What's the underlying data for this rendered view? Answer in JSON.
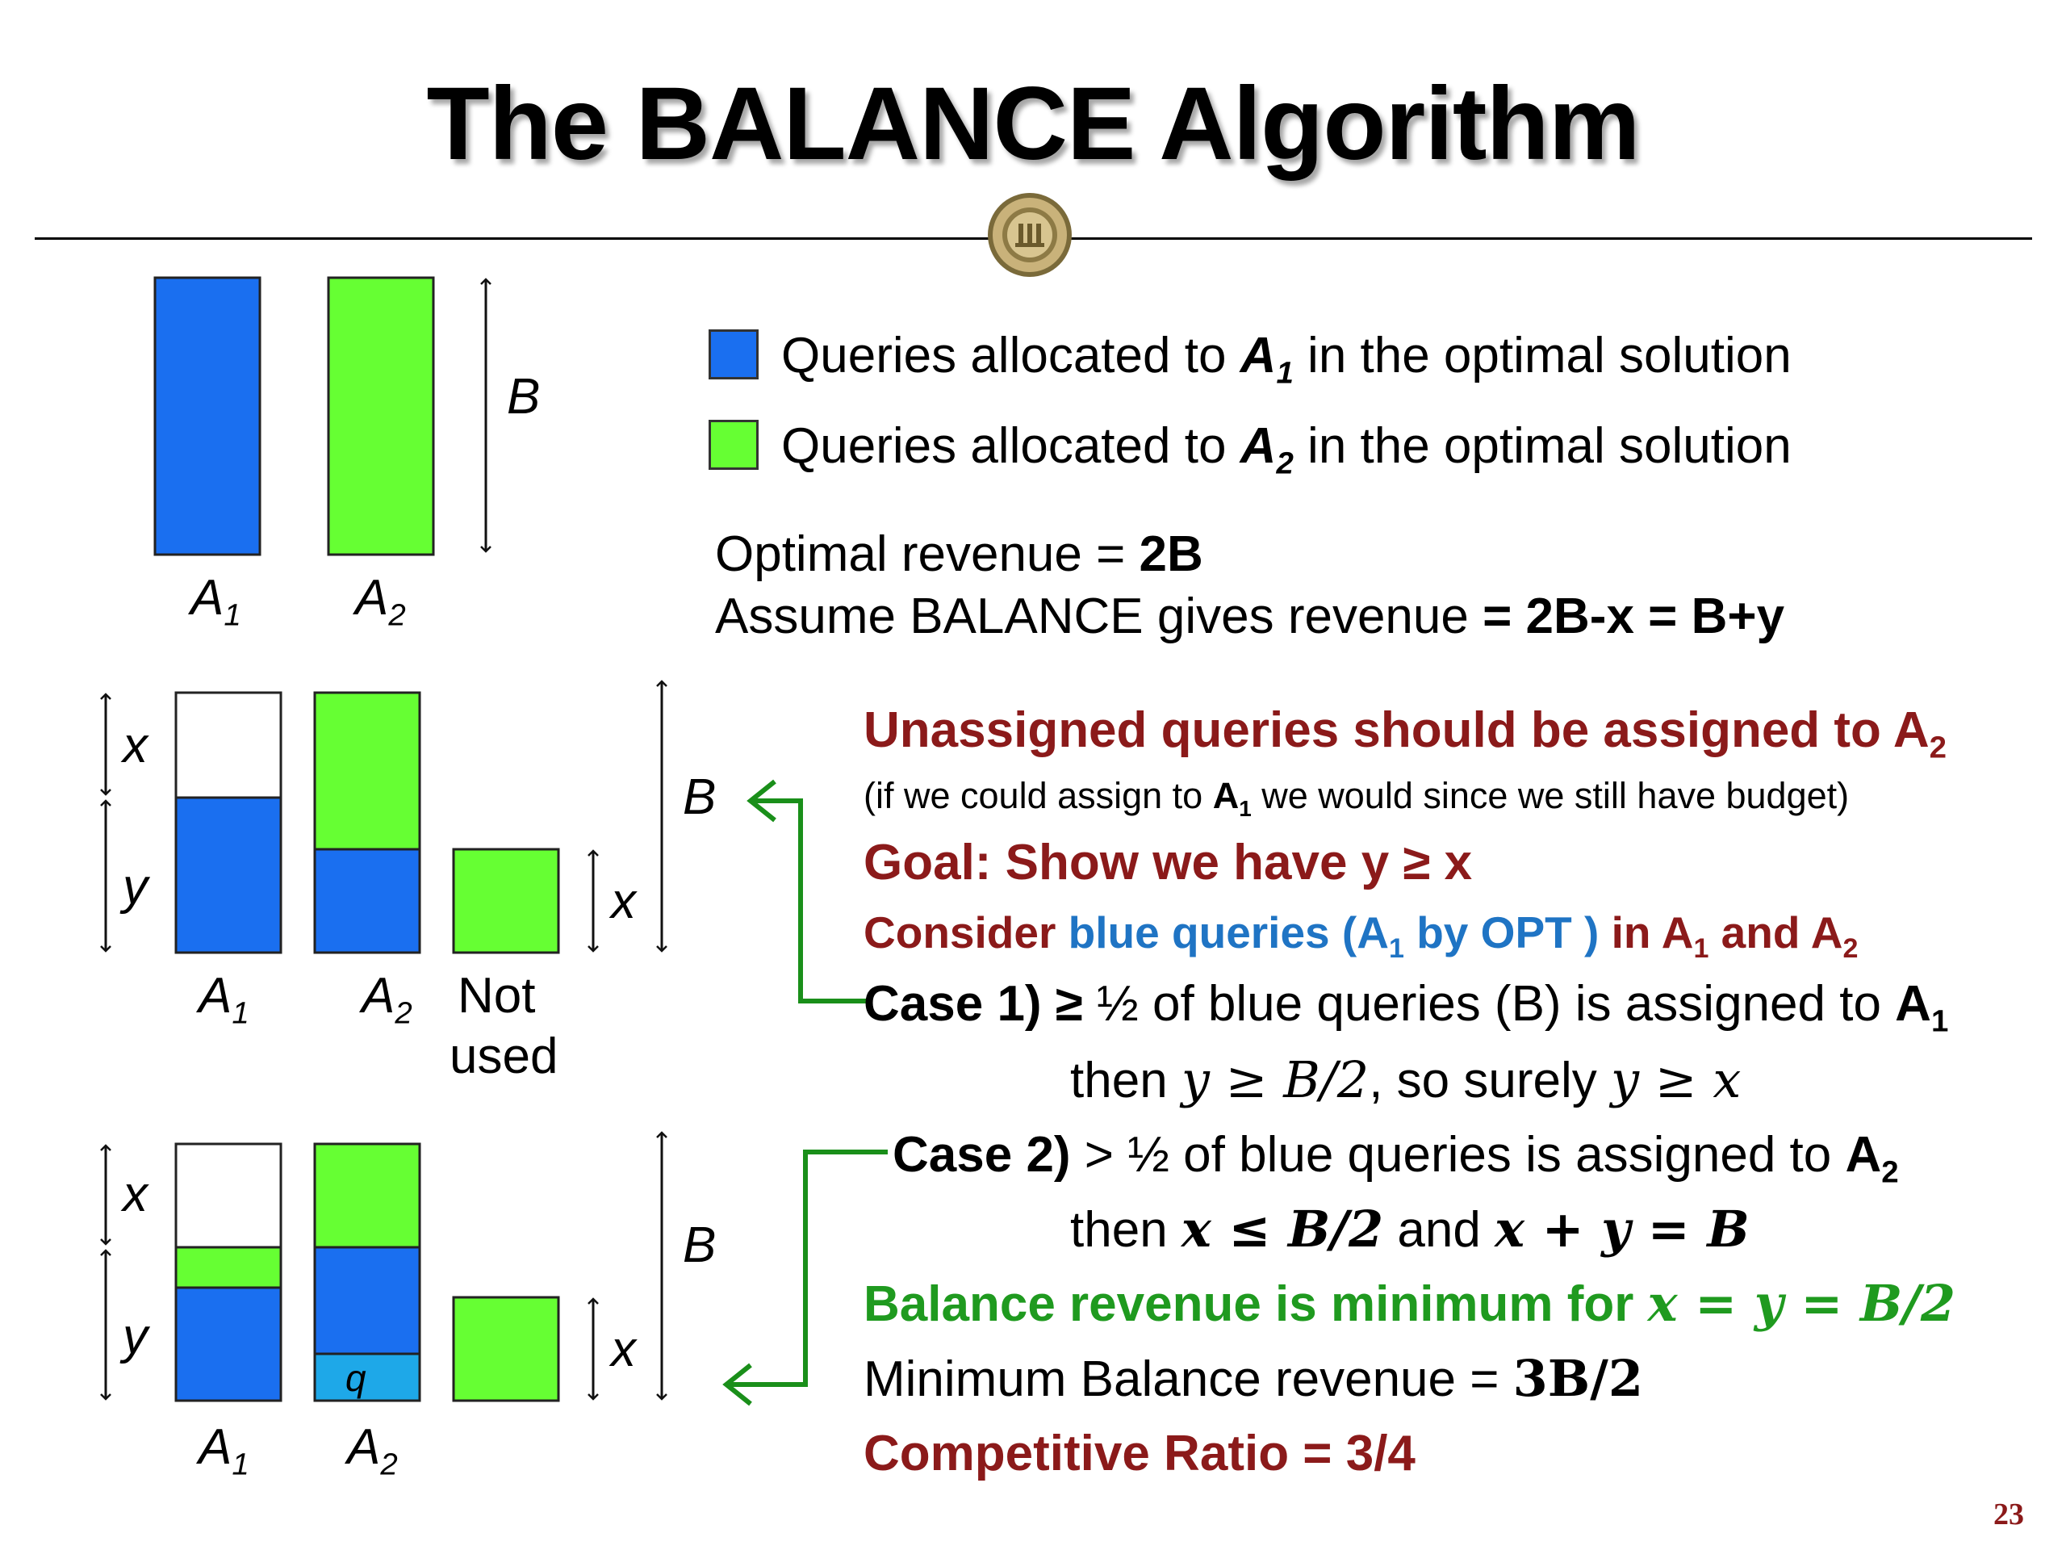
{
  "slide": {
    "title": "The BALANCE Algorithm",
    "page_number": "23"
  },
  "colors": {
    "blue": "#1a6ff0",
    "green": "#66ff33",
    "light_blue": "#1ea8e8",
    "dark_red": "#8b1a1a",
    "text_blue": "#1f74c4",
    "text_green": "#1f9a1f"
  },
  "diagram_labels": {
    "B": "B",
    "x": "x",
    "y": "y",
    "q": "q",
    "A": "A",
    "sub1": "1",
    "sub2": "2",
    "not": "Not",
    "used": "used"
  },
  "legend": {
    "prefix": "Queries allocated to ",
    "suffix": " in the optimal solution",
    "a": "A",
    "sub1": "1",
    "sub2": "2"
  },
  "revenue": {
    "optimal_prefix": "Optimal revenue = ",
    "optimal_value": "2B",
    "assume_prefix": "Assume BALANCE gives revenue ",
    "assume_value": "= 2B-x = B+y"
  },
  "reasoning": {
    "unassigned": "Unassigned queries should be assigned to A",
    "unassigned_sub": "2",
    "note_prefix": "(if we could assign to ",
    "note_a": "A",
    "note_sub": "1",
    "note_suffix": " we would since we still have budget)",
    "goal": "Goal: Show we have y ≥ x",
    "consider_1": "Consider ",
    "consider_blue": "blue queries (A",
    "consider_blue_sub": "1",
    "consider_blue_2": " by OPT )",
    "consider_2": " in A",
    "consider_2_sub": "1",
    "consider_3": " and A",
    "consider_3_sub": "2",
    "case1_label": "Case 1) ≥",
    "case1_text": " ½ of blue queries (B) is assigned to ",
    "case1_a": "A",
    "case1_sub": "1",
    "case1_then": "then ",
    "case1_math1": "y ≥ B/2",
    "case1_mid": ", so surely ",
    "case1_math2": "y ≥ x",
    "case2_label": "Case 2)",
    "case2_text": " > ½ of blue queries is assigned to ",
    "case2_a": "A",
    "case2_sub": "2",
    "case2_then": "then ",
    "case2_math1": "x ≤ B/2",
    "case2_and": " and ",
    "case2_math2": "x + y = B",
    "balance_text": "Balance revenue is minimum for ",
    "balance_math": "x = y = B/2",
    "min_text": "Minimum Balance revenue = ",
    "min_math": "3B/2",
    "ratio": "Competitive Ratio = 3/4"
  }
}
